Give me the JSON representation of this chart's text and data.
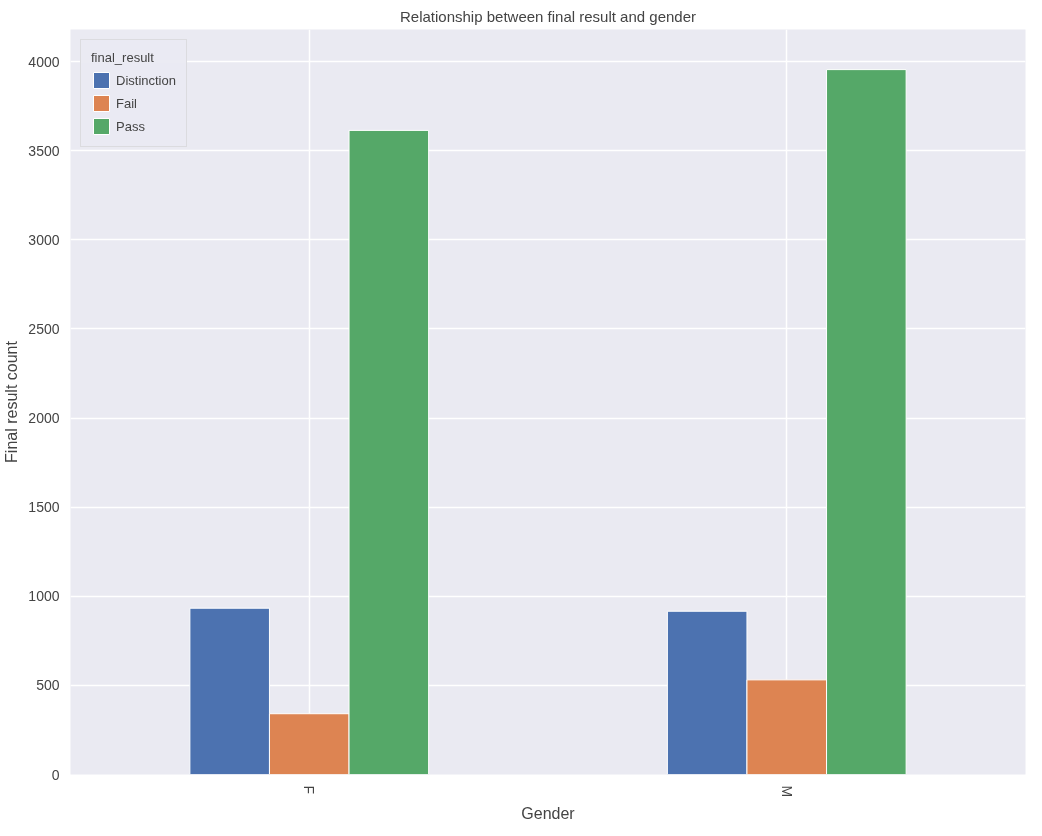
{
  "chart_data": {
    "type": "bar",
    "title": "Relationship between final result and gender",
    "xlabel": "Gender",
    "ylabel": "Final result count",
    "legend_title": "final_result",
    "categories": [
      "F",
      "M"
    ],
    "series": [
      {
        "name": "Distinction",
        "color": "#4c72b0",
        "values": [
          933,
          916
        ]
      },
      {
        "name": "Fail",
        "color": "#dd8452",
        "values": [
          341,
          531
        ]
      },
      {
        "name": "Pass",
        "color": "#55a868",
        "values": [
          3614,
          3955
        ]
      }
    ],
    "ylim": [
      0,
      4180
    ],
    "yticks": [
      0,
      500,
      1000,
      1500,
      2000,
      2500,
      3000,
      3500,
      4000
    ],
    "grid": true,
    "legend": "top left"
  }
}
